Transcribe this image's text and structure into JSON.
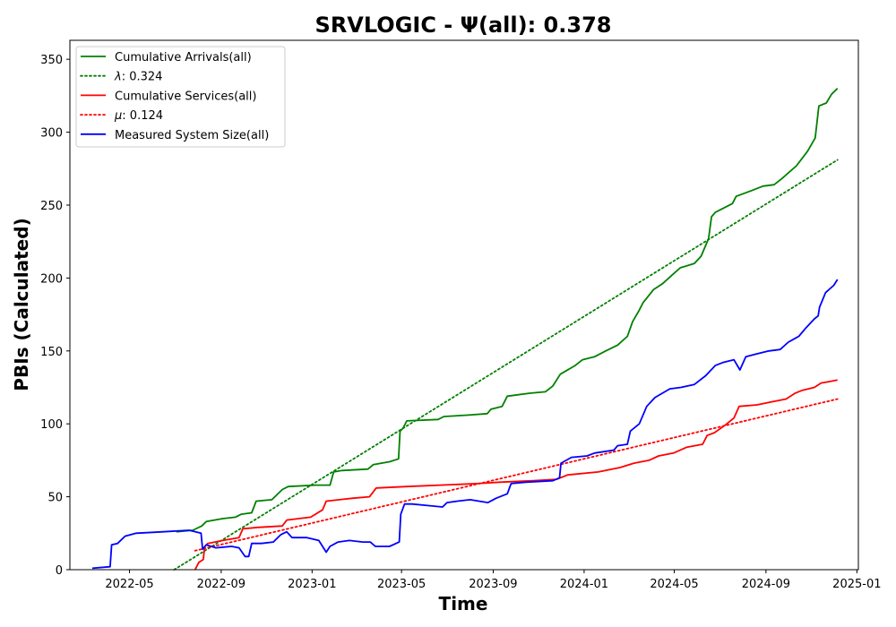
{
  "chart_data": {
    "type": "line",
    "title": "SRVLOGIC -  Ψ(all): 0.378",
    "xlabel": "Time",
    "ylabel": "PBIs (Calculated)",
    "xlim": [
      "2022-02-10",
      "2025-01-03"
    ],
    "ylim": [
      0,
      363
    ],
    "x_ticks": [
      "2022-05",
      "2022-09",
      "2023-01",
      "2023-05",
      "2023-09",
      "2024-01",
      "2024-05",
      "2024-09",
      "2025-01"
    ],
    "y_ticks": [
      0,
      50,
      100,
      150,
      200,
      250,
      300,
      350
    ],
    "grid": false,
    "legend_position": "upper left",
    "series": [
      {
        "name": "Cumulative Arrivals(all)",
        "color": "#008000",
        "style": "solid",
        "points": [
          [
            "2022-07-03",
            26
          ],
          [
            "2022-07-25",
            27
          ],
          [
            "2022-08-06",
            30
          ],
          [
            "2022-08-12",
            33
          ],
          [
            "2022-09-03",
            35
          ],
          [
            "2022-09-20",
            36
          ],
          [
            "2022-09-28",
            38
          ],
          [
            "2022-10-12",
            39
          ],
          [
            "2022-10-18",
            47
          ],
          [
            "2022-11-08",
            48
          ],
          [
            "2022-11-22",
            55
          ],
          [
            "2022-11-30",
            57
          ],
          [
            "2023-01-05",
            58
          ],
          [
            "2023-01-25",
            58
          ],
          [
            "2023-01-30",
            67
          ],
          [
            "2023-02-10",
            68
          ],
          [
            "2023-03-17",
            69
          ],
          [
            "2023-03-24",
            72
          ],
          [
            "2023-04-15",
            74
          ],
          [
            "2023-04-27",
            76
          ],
          [
            "2023-04-29",
            95
          ],
          [
            "2023-05-03",
            97
          ],
          [
            "2023-05-08",
            102
          ],
          [
            "2023-06-19",
            103
          ],
          [
            "2023-06-27",
            105
          ],
          [
            "2023-07-30",
            106
          ],
          [
            "2023-08-24",
            107
          ],
          [
            "2023-08-29",
            110
          ],
          [
            "2023-09-13",
            112
          ],
          [
            "2023-09-20",
            119
          ],
          [
            "2023-10-20",
            121
          ],
          [
            "2023-11-10",
            122
          ],
          [
            "2023-11-20",
            126
          ],
          [
            "2023-11-30",
            134
          ],
          [
            "2023-12-20",
            140
          ],
          [
            "2023-12-30",
            144
          ],
          [
            "2024-01-15",
            146
          ],
          [
            "2024-01-30",
            150
          ],
          [
            "2024-02-15",
            154
          ],
          [
            "2024-02-28",
            160
          ],
          [
            "2024-03-06",
            170
          ],
          [
            "2024-03-15",
            178
          ],
          [
            "2024-03-20",
            183
          ],
          [
            "2024-04-03",
            192
          ],
          [
            "2024-04-15",
            196
          ],
          [
            "2024-04-28",
            202
          ],
          [
            "2024-05-09",
            207
          ],
          [
            "2024-05-28",
            210
          ],
          [
            "2024-06-06",
            215
          ],
          [
            "2024-06-16",
            227
          ],
          [
            "2024-06-20",
            242
          ],
          [
            "2024-06-25",
            245
          ],
          [
            "2024-07-18",
            251
          ],
          [
            "2024-07-23",
            256
          ],
          [
            "2024-08-13",
            260
          ],
          [
            "2024-08-28",
            263
          ],
          [
            "2024-09-12",
            264
          ],
          [
            "2024-09-22",
            268
          ],
          [
            "2024-10-12",
            277
          ],
          [
            "2024-10-27",
            287
          ],
          [
            "2024-11-06",
            296
          ],
          [
            "2024-11-11",
            318
          ],
          [
            "2024-11-21",
            320
          ],
          [
            "2024-11-28",
            326
          ],
          [
            "2024-12-06",
            330
          ]
        ]
      },
      {
        "name": "λ: 0.324",
        "label_prefix": "λ",
        "label_value": ": 0.324",
        "color": "#008000",
        "style": "dotted",
        "points": [
          [
            "2022-06-30",
            0
          ],
          [
            "2024-12-06",
            281
          ]
        ]
      },
      {
        "name": "Cumulative Services(all)",
        "color": "#ff0000",
        "style": "solid",
        "points": [
          [
            "2022-07-28",
            0
          ],
          [
            "2022-08-02",
            5
          ],
          [
            "2022-08-08",
            7
          ],
          [
            "2022-08-10",
            16
          ],
          [
            "2022-08-14",
            18
          ],
          [
            "2022-09-03",
            20
          ],
          [
            "2022-09-25",
            22
          ],
          [
            "2022-09-30",
            28
          ],
          [
            "2022-10-20",
            29
          ],
          [
            "2022-11-22",
            30
          ],
          [
            "2022-11-28",
            34
          ],
          [
            "2022-12-30",
            36
          ],
          [
            "2023-01-15",
            41
          ],
          [
            "2023-01-20",
            47
          ],
          [
            "2023-02-25",
            49
          ],
          [
            "2023-03-19",
            50
          ],
          [
            "2023-03-28",
            56
          ],
          [
            "2023-05-08",
            57
          ],
          [
            "2023-08-10",
            59
          ],
          [
            "2023-09-10",
            60
          ],
          [
            "2023-10-25",
            61
          ],
          [
            "2023-11-25",
            62
          ],
          [
            "2023-12-10",
            65
          ],
          [
            "2024-01-20",
            67
          ],
          [
            "2024-02-18",
            70
          ],
          [
            "2024-03-08",
            73
          ],
          [
            "2024-03-28",
            75
          ],
          [
            "2024-04-10",
            78
          ],
          [
            "2024-04-30",
            80
          ],
          [
            "2024-05-18",
            84
          ],
          [
            "2024-06-08",
            86
          ],
          [
            "2024-06-14",
            92
          ],
          [
            "2024-06-24",
            94
          ],
          [
            "2024-07-08",
            99
          ],
          [
            "2024-07-20",
            104
          ],
          [
            "2024-07-27",
            112
          ],
          [
            "2024-08-20",
            113
          ],
          [
            "2024-09-08",
            115
          ],
          [
            "2024-09-28",
            117
          ],
          [
            "2024-10-10",
            121
          ],
          [
            "2024-10-20",
            123
          ],
          [
            "2024-11-05",
            125
          ],
          [
            "2024-11-14",
            128
          ],
          [
            "2024-11-25",
            129
          ],
          [
            "2024-12-06",
            130
          ]
        ]
      },
      {
        "name": "μ: 0.124",
        "label_prefix": "μ",
        "label_value": ": 0.124",
        "color": "#ff0000",
        "style": "dotted",
        "points": [
          [
            "2022-07-28",
            13
          ],
          [
            "2024-12-06",
            117
          ]
        ]
      },
      {
        "name": "Measured System Size(all)",
        "color": "#0000ff",
        "style": "solid",
        "points": [
          [
            "2022-03-12",
            1
          ],
          [
            "2022-04-05",
            2
          ],
          [
            "2022-04-07",
            17
          ],
          [
            "2022-04-15",
            18
          ],
          [
            "2022-04-25",
            23
          ],
          [
            "2022-05-10",
            25
          ],
          [
            "2022-06-15",
            26
          ],
          [
            "2022-07-20",
            27
          ],
          [
            "2022-08-05",
            25
          ],
          [
            "2022-08-07",
            14
          ],
          [
            "2022-08-12",
            17
          ],
          [
            "2022-08-25",
            15
          ],
          [
            "2022-09-15",
            16
          ],
          [
            "2022-09-25",
            15
          ],
          [
            "2022-10-03",
            9
          ],
          [
            "2022-10-08",
            9
          ],
          [
            "2022-10-12",
            18
          ],
          [
            "2022-10-25",
            18
          ],
          [
            "2022-11-10",
            19
          ],
          [
            "2022-11-20",
            24
          ],
          [
            "2022-11-28",
            26
          ],
          [
            "2022-12-05",
            22
          ],
          [
            "2022-12-25",
            22
          ],
          [
            "2023-01-10",
            20
          ],
          [
            "2023-01-20",
            12
          ],
          [
            "2023-01-25",
            16
          ],
          [
            "2023-02-05",
            19
          ],
          [
            "2023-02-20",
            20
          ],
          [
            "2023-03-10",
            19
          ],
          [
            "2023-03-20",
            19
          ],
          [
            "2023-03-27",
            16
          ],
          [
            "2023-04-15",
            16
          ],
          [
            "2023-04-28",
            19
          ],
          [
            "2023-04-30",
            38
          ],
          [
            "2023-05-05",
            45
          ],
          [
            "2023-05-15",
            45
          ],
          [
            "2023-06-05",
            44
          ],
          [
            "2023-06-25",
            43
          ],
          [
            "2023-07-01",
            46
          ],
          [
            "2023-07-15",
            47
          ],
          [
            "2023-08-01",
            48
          ],
          [
            "2023-08-25",
            46
          ],
          [
            "2023-09-05",
            49
          ],
          [
            "2023-09-20",
            52
          ],
          [
            "2023-09-25",
            59
          ],
          [
            "2023-10-15",
            60
          ],
          [
            "2023-11-20",
            61
          ],
          [
            "2023-11-29",
            63
          ],
          [
            "2023-12-01",
            73
          ],
          [
            "2023-12-15",
            77
          ],
          [
            "2024-01-05",
            78
          ],
          [
            "2024-01-15",
            80
          ],
          [
            "2024-02-10",
            82
          ],
          [
            "2024-02-15",
            85
          ],
          [
            "2024-02-28",
            86
          ],
          [
            "2024-03-03",
            95
          ],
          [
            "2024-03-15",
            100
          ],
          [
            "2024-03-25",
            112
          ],
          [
            "2024-04-05",
            118
          ],
          [
            "2024-04-15",
            121
          ],
          [
            "2024-04-25",
            124
          ],
          [
            "2024-05-10",
            125
          ],
          [
            "2024-05-28",
            127
          ],
          [
            "2024-06-12",
            133
          ],
          [
            "2024-06-25",
            140
          ],
          [
            "2024-07-05",
            142
          ],
          [
            "2024-07-20",
            144
          ],
          [
            "2024-07-28",
            137
          ],
          [
            "2024-08-05",
            146
          ],
          [
            "2024-08-20",
            148
          ],
          [
            "2024-09-05",
            150
          ],
          [
            "2024-09-20",
            151
          ],
          [
            "2024-10-01",
            156
          ],
          [
            "2024-10-15",
            160
          ],
          [
            "2024-10-25",
            166
          ],
          [
            "2024-11-05",
            172
          ],
          [
            "2024-11-10",
            174
          ],
          [
            "2024-11-12",
            180
          ],
          [
            "2024-11-20",
            190
          ],
          [
            "2024-12-01",
            195
          ],
          [
            "2024-12-06",
            199
          ]
        ]
      }
    ]
  }
}
